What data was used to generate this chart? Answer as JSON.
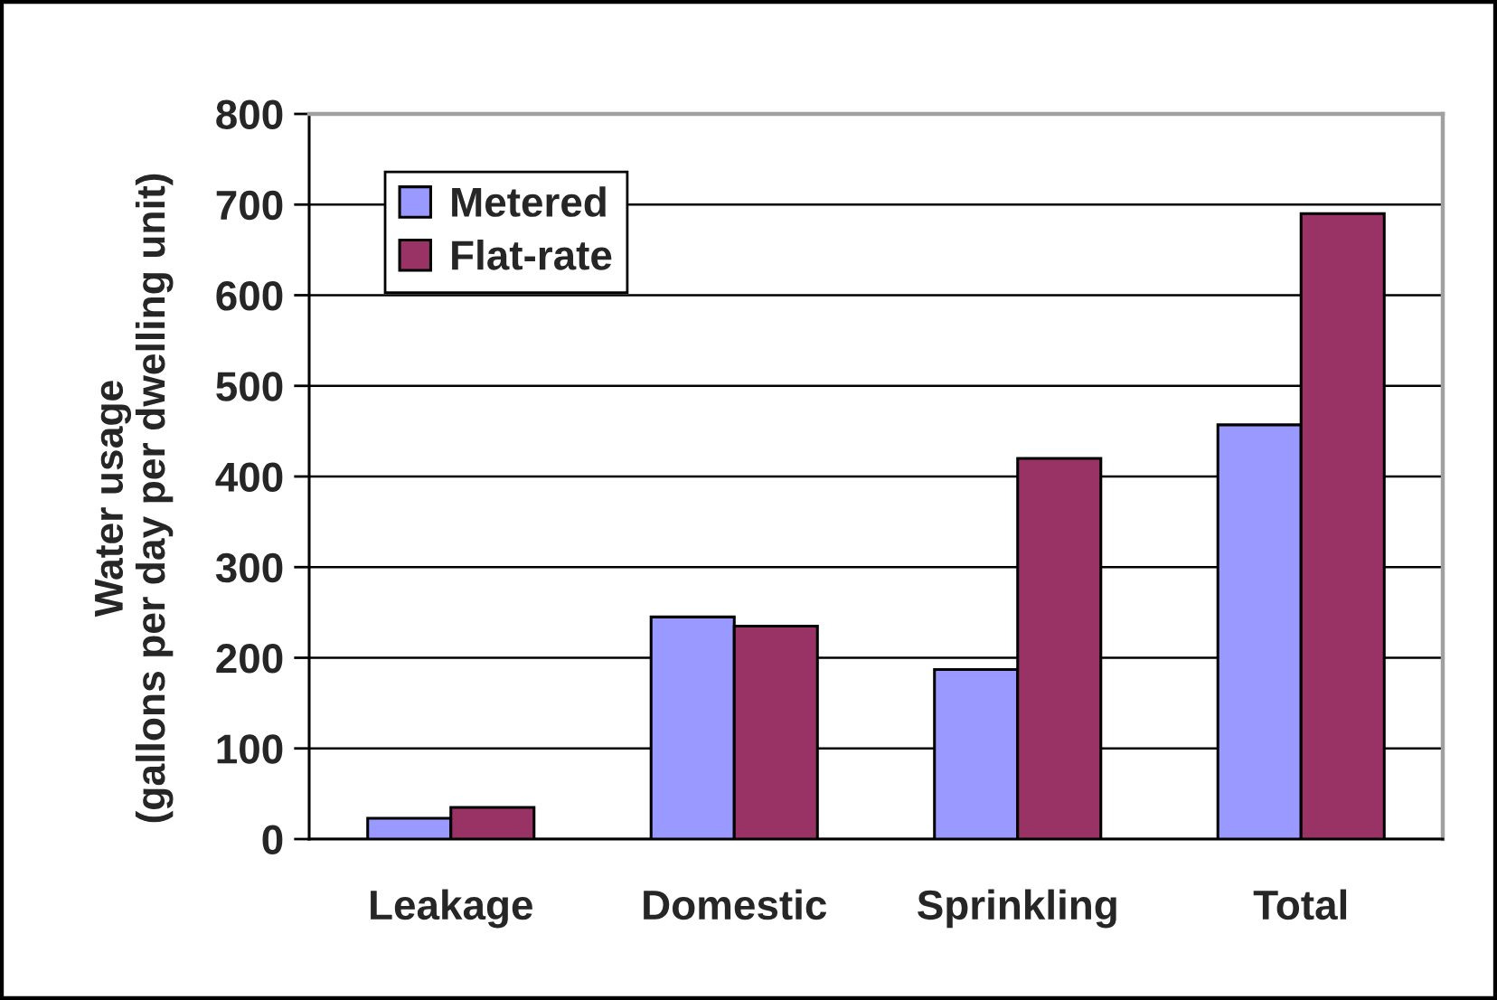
{
  "chart_data": {
    "type": "bar",
    "categories": [
      "Leakage",
      "Domestic",
      "Sprinkling",
      "Total"
    ],
    "series": [
      {
        "name": "Metered",
        "color": "#9999ff",
        "values": [
          23,
          245,
          187,
          457
        ]
      },
      {
        "name": "Flat-rate",
        "color": "#993366",
        "values": [
          35,
          235,
          420,
          690
        ]
      }
    ],
    "ylabel": "Water usage\n(gallons per day per dwelling unit)",
    "ylim": [
      0,
      800
    ],
    "yticks": [
      0,
      100,
      200,
      300,
      400,
      500,
      600,
      700,
      800
    ],
    "grid": "y",
    "legend": "top left"
  }
}
